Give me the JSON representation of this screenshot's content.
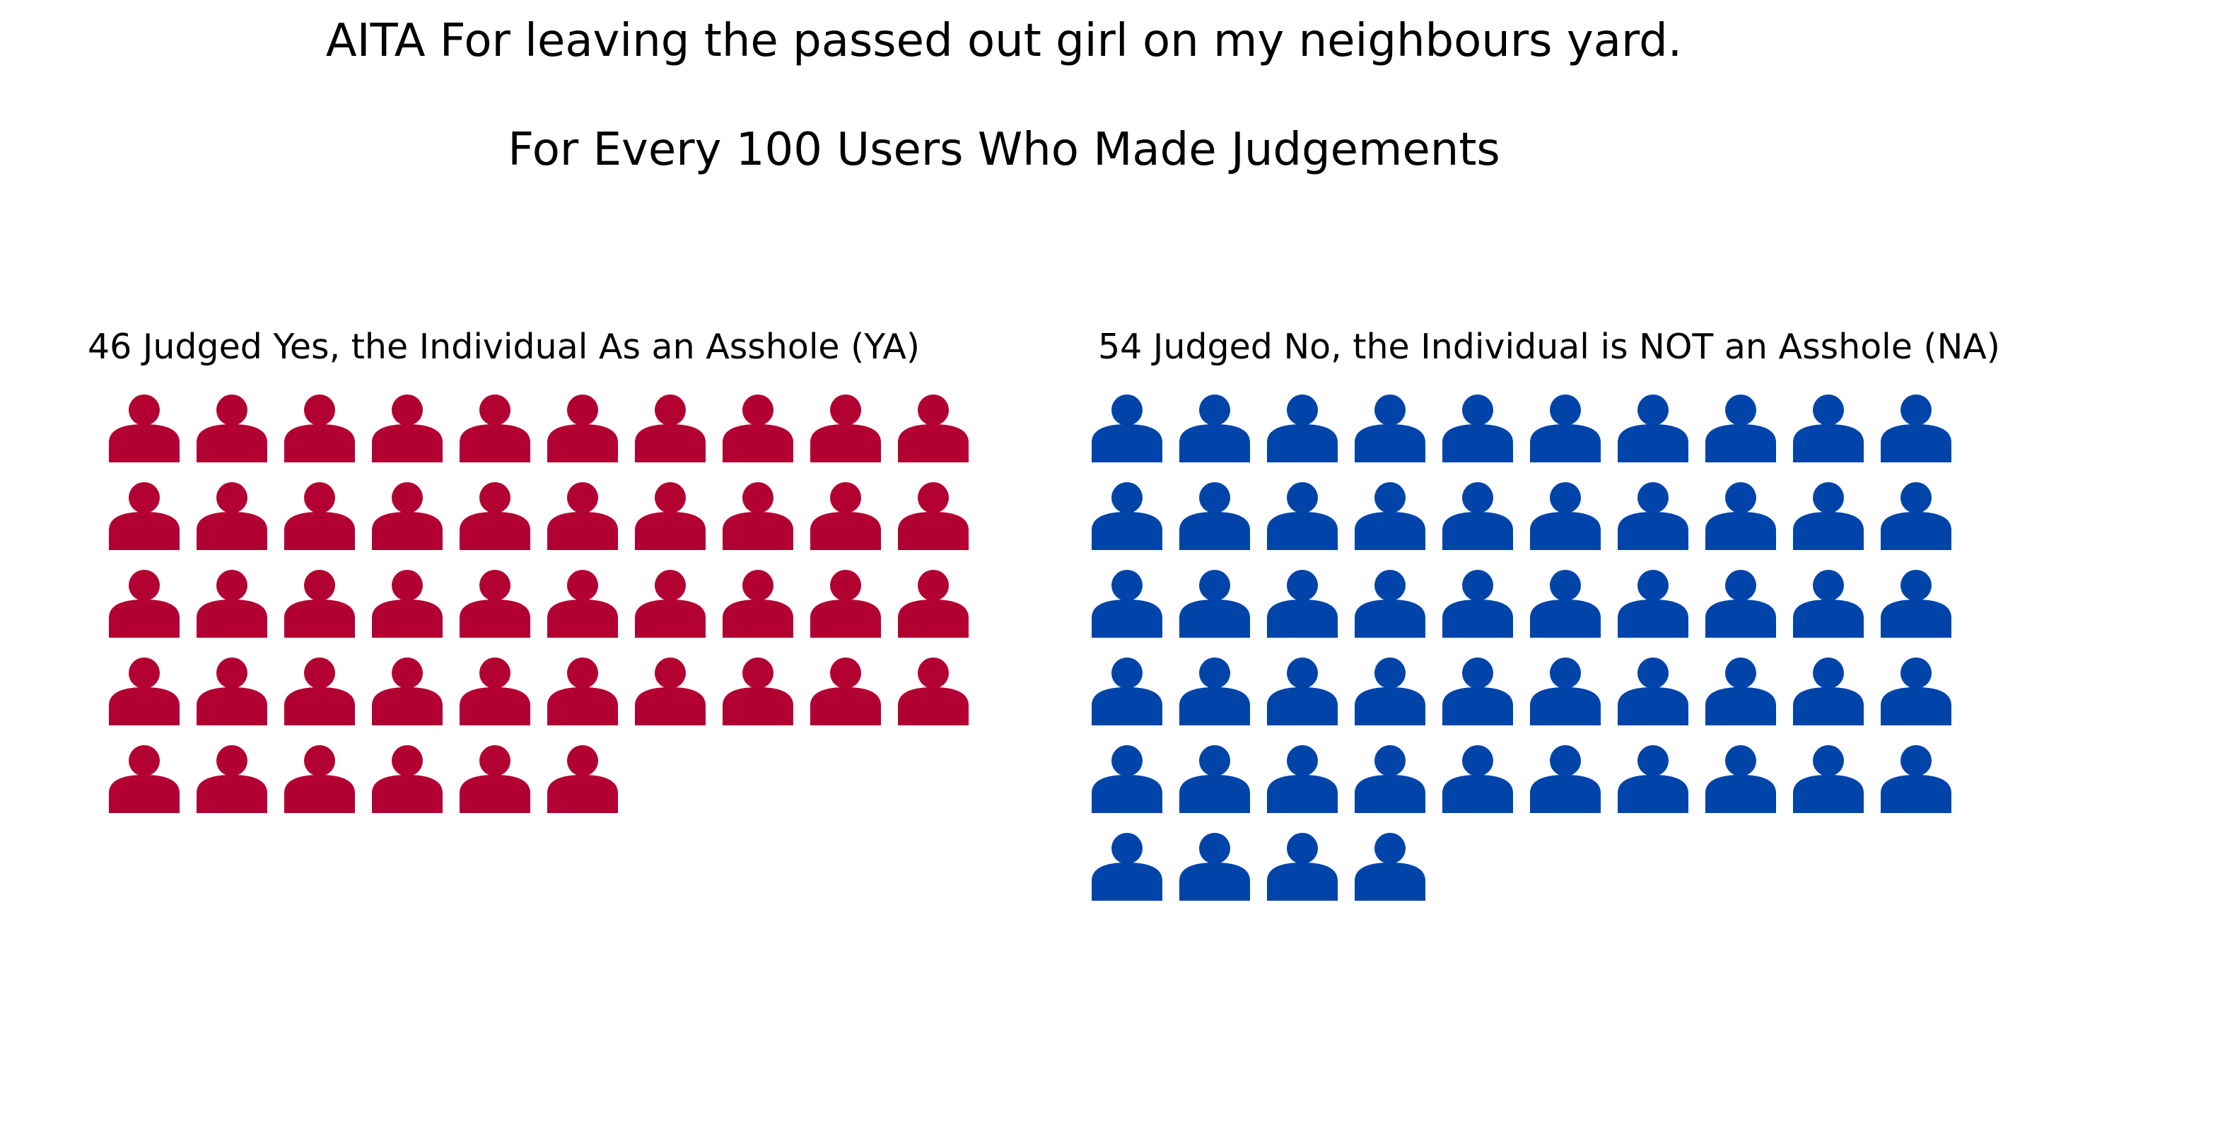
{
  "chart_data": {
    "type": "pictogram",
    "title": "AITA For leaving the passed out girl on my neighbours yard.",
    "subtitle": "For Every 100 Users Who Made Judgements",
    "icon": "person-icon",
    "columns": 10,
    "panels": [
      {
        "key": "ya",
        "label": "46 Judged Yes, the Individual As an Asshole (YA)",
        "count": 46,
        "color": "#b30033"
      },
      {
        "key": "na",
        "label": "54 Judged No, the Individual is NOT an Asshole (NA)",
        "count": 54,
        "color": "#0044aa"
      }
    ]
  }
}
